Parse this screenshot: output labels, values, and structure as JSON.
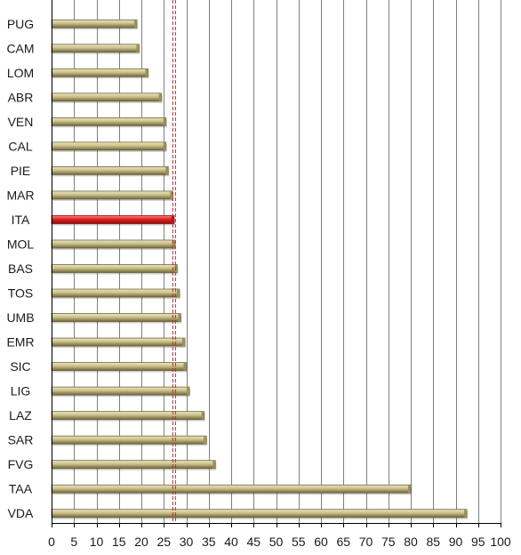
{
  "chart_data": {
    "type": "bar",
    "orientation": "horizontal",
    "title": "",
    "xlabel": "",
    "ylabel": "",
    "categories": [
      "PUG",
      "CAM",
      "LOM",
      "ABR",
      "VEN",
      "CAL",
      "PIE",
      "MAR",
      "ITA",
      "MOL",
      "BAS",
      "TOS",
      "UMB",
      "EMR",
      "SIC",
      "LIG",
      "LAZ",
      "SAR",
      "FVG",
      "TAA",
      "VDA"
    ],
    "values": [
      19,
      19.5,
      21.5,
      24.5,
      25.5,
      25.5,
      26,
      27,
      27.3,
      27.5,
      28,
      28.5,
      28.8,
      29.7,
      30,
      30.7,
      34,
      34.5,
      36.5,
      80,
      92.5
    ],
    "highlight_category": "ITA",
    "reference_line": {
      "value": 27.3,
      "style": "dashed",
      "color": "#c0282d"
    },
    "xlim": [
      0,
      100
    ],
    "xticks": [
      0,
      5,
      10,
      15,
      20,
      25,
      30,
      35,
      40,
      45,
      50,
      55,
      60,
      65,
      70,
      75,
      80,
      85,
      90,
      95,
      100
    ],
    "grid": "vertical",
    "colors": {
      "bar": "#c9c08a",
      "bar_dark": "#6e6439",
      "highlight": "#e02020",
      "highlight_dark": "#8a0c0c",
      "grid": "#7f7f7f",
      "axis": "#000000"
    }
  }
}
